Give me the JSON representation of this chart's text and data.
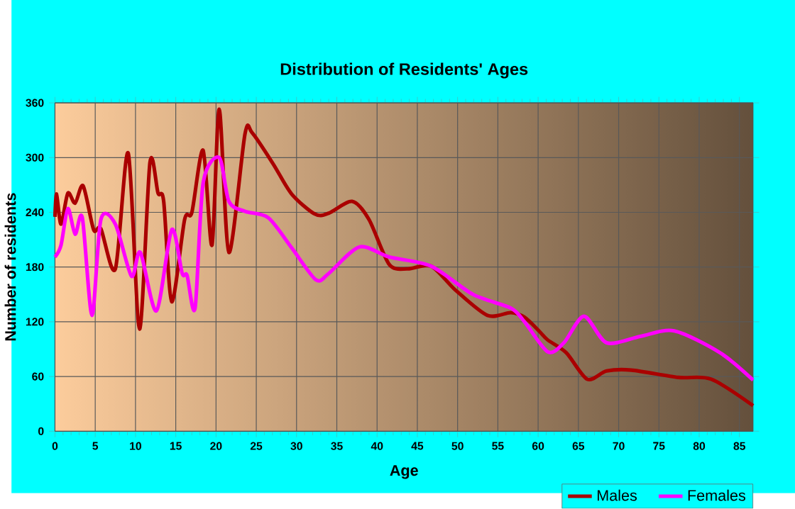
{
  "chart_data": {
    "type": "line",
    "title": "Distribution of Residents' Ages",
    "xlabel": "Age",
    "ylabel": "Number of residents",
    "xlim": [
      0,
      86.7
    ],
    "xticks": [
      0,
      5,
      10,
      15,
      20,
      25,
      30,
      35,
      40,
      45,
      50,
      55,
      60,
      65,
      70,
      75,
      80,
      85
    ],
    "ylim": [
      0,
      360
    ],
    "yticks": [
      0,
      60,
      120,
      180,
      240,
      300,
      360
    ],
    "grid": true,
    "legend": "bottom right",
    "marker": "none",
    "line_style": "solid",
    "series": [
      {
        "name": "Males",
        "color": "#aa0000",
        "x": [
          0,
          0.2,
          0.75,
          1.6,
          2.5,
          3.5,
          4.8,
          5.7,
          7.5,
          9.1,
          10.5,
          11.8,
          12.8,
          13.5,
          14.5,
          16.1,
          17,
          18.4,
          19.5,
          20.4,
          21.6,
          23.6,
          24.5,
          27.1,
          29.4,
          32.3,
          34,
          36.9,
          39,
          41.5,
          43.8,
          46.7,
          49.7,
          53.7,
          56.6,
          58.3,
          60.1,
          61.2,
          63.5,
          66.1,
          68.5,
          71.6,
          77.4,
          81.5,
          86.7
        ],
        "values": [
          235,
          260,
          227,
          261,
          250,
          269,
          221,
          222,
          178,
          305,
          112,
          295,
          261,
          252,
          142,
          232,
          240,
          308,
          204,
          353,
          196,
          326,
          327,
          293,
          260,
          238,
          239,
          252,
          232,
          183,
          178,
          181,
          155,
          127,
          130,
          125,
          110,
          100,
          86,
          57,
          66,
          67,
          59,
          57,
          28
        ]
      },
      {
        "name": "Females",
        "color": "#ff00ff",
        "x": [
          0,
          0.75,
          1.6,
          2.5,
          3.4,
          4.6,
          5.7,
          7.5,
          9.5,
          10.6,
          12.6,
          14.5,
          15.8,
          16.4,
          17.4,
          18.4,
          20.4,
          21.6,
          23.6,
          26.5,
          29.4,
          32.4,
          34,
          37.8,
          41.5,
          46.7,
          51.9,
          56.6,
          58.3,
          61.2,
          63.2,
          65.7,
          68.5,
          72.7,
          76.9,
          82.6,
          86.7
        ],
        "values": [
          191,
          204,
          244,
          216,
          234,
          127,
          232,
          227,
          170,
          196,
          132,
          221,
          173,
          171,
          135,
          272,
          300,
          252,
          241,
          234,
          201,
          166,
          173,
          202,
          191,
          181,
          150,
          135,
          120,
          87,
          97,
          126,
          97,
          104,
          110,
          86,
          56
        ]
      }
    ]
  }
}
